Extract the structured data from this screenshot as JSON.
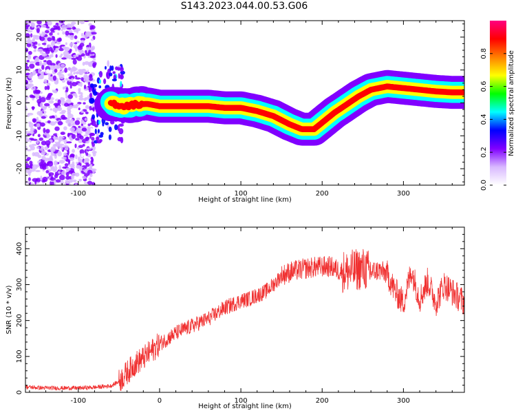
{
  "figure": {
    "title": "S143.2023.044.00.53.G06"
  },
  "chart_data": [
    {
      "type": "heatmap",
      "xlabel": "Height of straight line (km)",
      "ylabel": "Frequency (Hz)",
      "xlim": [
        -165,
        375
      ],
      "ylim": [
        -25,
        25
      ],
      "x_ticks": [
        -100,
        0,
        100,
        200,
        300
      ],
      "y_ticks": [
        -20,
        -10,
        0,
        10,
        20
      ],
      "colorbar": {
        "label": "Normalized spectral amplitude",
        "range": [
          0.0,
          1.0
        ],
        "ticks": [
          0.0,
          0.2,
          0.4,
          0.6,
          0.8
        ],
        "colors": [
          "#ffffff",
          "#d8b8ff",
          "#8000ff",
          "#0000ff",
          "#00ffff",
          "#00ff00",
          "#ffff00",
          "#ff8000",
          "#ff0000",
          "#ff0080"
        ]
      },
      "noise_region_x": [
        -165,
        -80
      ],
      "ridge": {
        "x": [
          -60,
          -45,
          -30,
          -15,
          0,
          20,
          40,
          60,
          80,
          100,
          120,
          140,
          160,
          175,
          190,
          200,
          215,
          230,
          245,
          260,
          280,
          300,
          320,
          340,
          360,
          375
        ],
        "frequency": [
          0,
          -1,
          -0.5,
          -0.3,
          -1,
          -1,
          -1,
          -1,
          -1.5,
          -1.5,
          -2.5,
          -4,
          -6.5,
          -8,
          -8,
          -6,
          -3,
          -0.5,
          2,
          4,
          5,
          4.5,
          4,
          3.5,
          3.2,
          3.2
        ]
      }
    },
    {
      "type": "line",
      "xlabel": "Height of straight line (km)",
      "ylabel": "SNR (10 * v/v)",
      "xlim": [
        -165,
        375
      ],
      "ylim": [
        0,
        460
      ],
      "x_ticks": [
        -100,
        0,
        100,
        200,
        300
      ],
      "y_ticks": [
        0,
        100,
        200,
        300,
        400
      ],
      "color": "#f03030",
      "series": [
        {
          "x": [
            -165,
            -140,
            -120,
            -100,
            -80,
            -60,
            -50,
            -40,
            -30,
            -20,
            -10,
            0,
            10,
            20,
            30,
            40,
            50,
            60,
            70,
            80,
            90,
            100,
            110,
            120,
            130,
            140,
            150,
            160,
            170,
            180,
            190,
            200,
            210,
            220,
            230,
            240,
            250,
            260,
            270,
            280,
            290,
            300,
            310,
            320,
            330,
            340,
            350,
            360,
            375
          ],
          "values": [
            15,
            12,
            12,
            12,
            14,
            18,
            30,
            55,
            80,
            95,
            115,
            135,
            150,
            165,
            175,
            185,
            195,
            205,
            220,
            235,
            245,
            255,
            260,
            270,
            280,
            300,
            325,
            335,
            340,
            345,
            348,
            350,
            350,
            340,
            335,
            340,
            345,
            335,
            340,
            330,
            280,
            250,
            340,
            260,
            310,
            250,
            300,
            280,
            250
          ]
        }
      ]
    }
  ]
}
